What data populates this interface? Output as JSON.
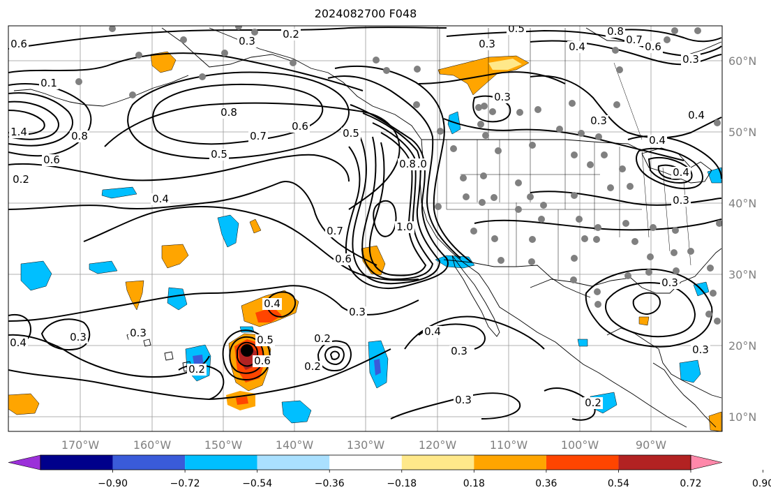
{
  "title": "2024082700 F048",
  "map": {
    "lon_labels": [
      "170°W",
      "160°W",
      "150°W",
      "140°W",
      "130°W",
      "120°W",
      "110°W",
      "100°W",
      "90°W"
    ],
    "lat_labels": [
      "60°N",
      "50°N",
      "40°N",
      "30°N",
      "20°N",
      "10°N"
    ],
    "contour_labels": [
      "0.6",
      "0.2",
      "0.3",
      "0.5",
      "0.8",
      "0.7",
      "0.6",
      "0.4",
      "0.3",
      "0.1",
      "1.0",
      "1.4",
      "0.8",
      "0.6",
      "0.8",
      "0.7",
      "0.6",
      "0.5",
      "0.5",
      "0.4",
      "1.0",
      "0.8",
      "0.7",
      "0.6",
      "0.3",
      "0.3",
      "0.4",
      "0.4",
      "0.4",
      "0.3",
      "0.3",
      "0.4",
      "0.3",
      "0.4",
      "0.3",
      "0.2",
      "0.2",
      "0.3",
      "0.3",
      "0.4",
      "0.5",
      "0.6",
      "0.2",
      "0.3",
      "0.2",
      "0.3",
      "0.3",
      "0.2"
    ],
    "colors": {
      "land_outline": "#000000",
      "grid": "#888888",
      "station": "#808080",
      "contour": "#000000"
    }
  },
  "colorbar": {
    "colors": [
      "#9b30d9",
      "#00008b",
      "#3a5bd9",
      "#00bfff",
      "#aae0ff",
      "#ffffff",
      "#ffe88a",
      "#ffa500",
      "#ff4500",
      "#b22222",
      "#ff88aa"
    ],
    "tick_labels": [
      "−0.90",
      "−0.72",
      "−0.54",
      "−0.36",
      "−0.18",
      "0.18",
      "0.36",
      "0.54",
      "0.72",
      "0.90"
    ]
  }
}
